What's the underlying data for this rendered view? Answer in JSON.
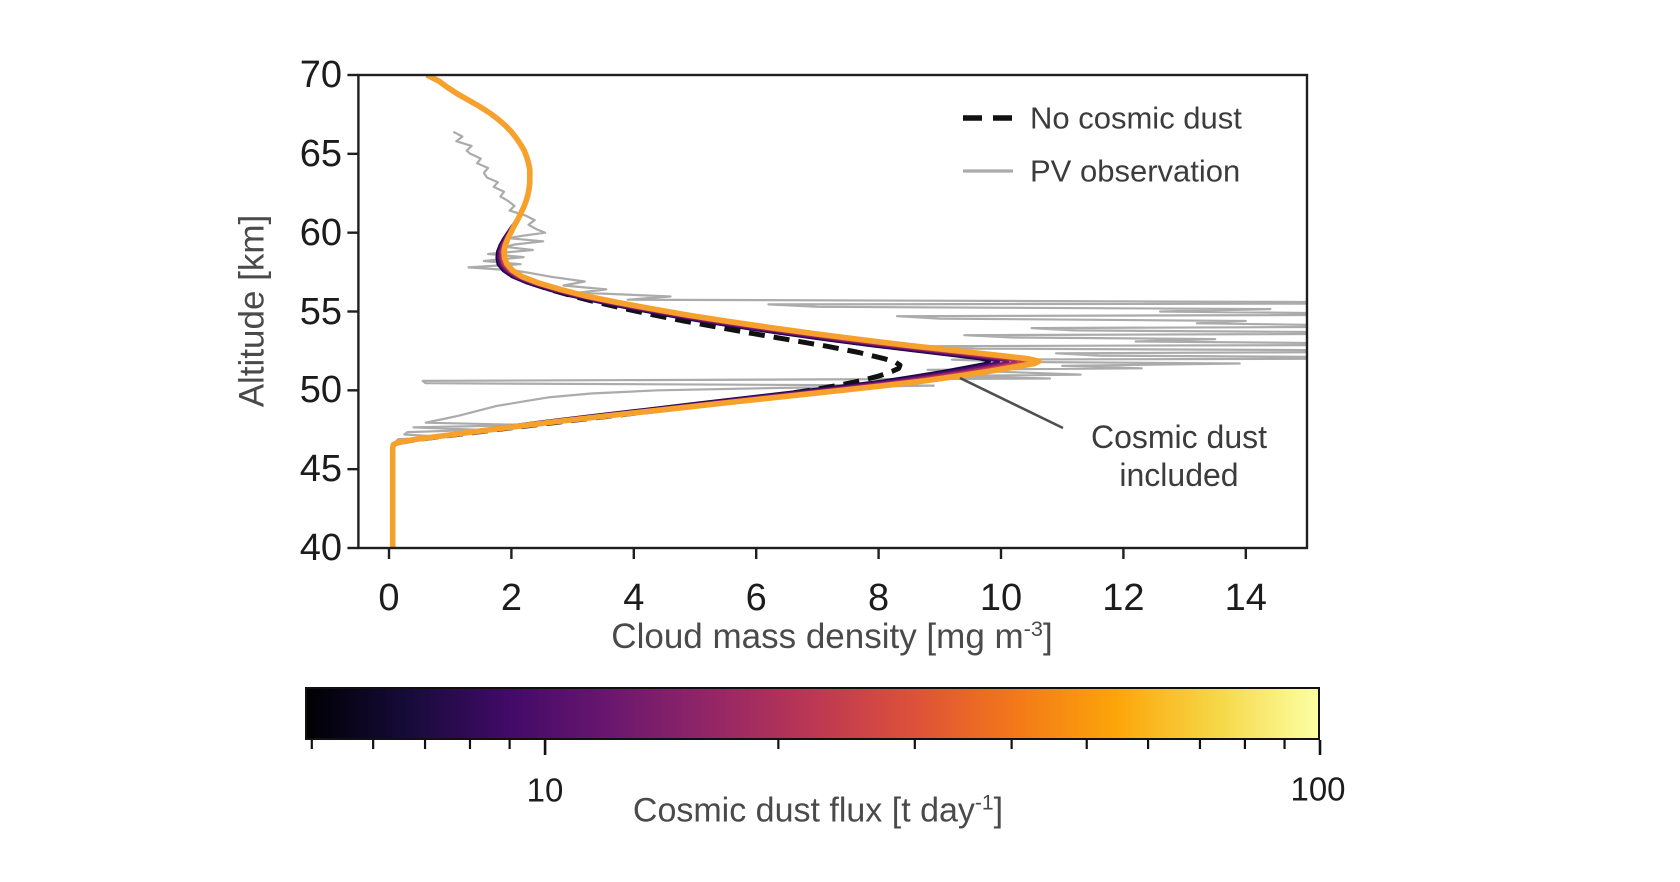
{
  "colors": {
    "background": "#ffffff",
    "spine": "#1f1f1f",
    "tick_text": "#1c1c1c",
    "label_text": "#4a4a4a",
    "legend_text": "#3c3c3c",
    "no_cosmic_dust_line": "#111111",
    "pv_observation_line": "#ababab",
    "leader_line": "#4f4f4f",
    "inferno_stops": [
      "#000004",
      "#160B39",
      "#420A68",
      "#6A176E",
      "#932667",
      "#BC3754",
      "#DD513A",
      "#F37819",
      "#FCA50A",
      "#F6D746",
      "#FCFFA4"
    ]
  },
  "axes": {
    "ylabel": "Altitude [km]",
    "xlabel_main": "Cloud mass density [mg m",
    "xlabel_sup": "-3",
    "xlabel_end": "]",
    "yticks": [
      70,
      65,
      60,
      55,
      50,
      45,
      40
    ],
    "xticks": [
      0,
      2,
      4,
      6,
      8,
      10,
      12,
      14
    ],
    "xlim": [
      -0.5,
      15
    ],
    "ylim": [
      40,
      70
    ]
  },
  "legend": {
    "items": [
      {
        "label": "No cosmic dust",
        "style": "dashed-black"
      },
      {
        "label": "PV observation",
        "style": "solid-gray"
      }
    ]
  },
  "annotation": {
    "line1": "Cosmic dust",
    "line2": "included"
  },
  "colorbar": {
    "label_main": "Cosmic dust flux [t day",
    "label_sup": "-1",
    "label_end": "]",
    "scale": "log",
    "range_min": 4.9,
    "range_max": 100,
    "ticks_major": [
      10,
      100
    ],
    "tick_labels": [
      "10",
      "100"
    ],
    "ticks_minor": [
      5,
      6,
      7,
      8,
      9,
      20,
      30,
      40,
      50,
      60,
      70,
      80,
      90
    ],
    "colormap": "inferno"
  },
  "chart_data": {
    "type": "line",
    "title": "",
    "xlabel": "Cloud mass density [mg m^-3]",
    "ylabel": "Altitude [km]",
    "xlim": [
      -0.5,
      15
    ],
    "ylim": [
      40,
      70
    ],
    "grid": false,
    "legend_position": "upper right inside",
    "series": [
      {
        "name": "PV observation",
        "style": "solid",
        "width": 2.2,
        "points": [
          [
            1.05,
            66.4
          ],
          [
            1.2,
            66.1
          ],
          [
            1.1,
            65.8
          ],
          [
            1.35,
            65.5
          ],
          [
            1.27,
            65.2
          ],
          [
            1.33,
            65.0
          ],
          [
            1.5,
            64.7
          ],
          [
            1.44,
            64.4
          ],
          [
            1.62,
            64.1
          ],
          [
            1.55,
            63.8
          ],
          [
            1.6,
            63.5
          ],
          [
            1.78,
            63.2
          ],
          [
            1.71,
            62.9
          ],
          [
            1.88,
            62.6
          ],
          [
            1.82,
            62.3
          ],
          [
            1.95,
            62.0
          ],
          [
            2.05,
            61.7
          ],
          [
            1.97,
            61.4
          ],
          [
            2.22,
            61.1
          ],
          [
            2.38,
            60.8
          ],
          [
            2.28,
            60.5
          ],
          [
            2.42,
            60.2
          ],
          [
            2.55,
            60.0
          ],
          [
            2.18,
            59.8
          ],
          [
            1.95,
            59.65
          ],
          [
            2.52,
            59.45
          ],
          [
            2.05,
            59.25
          ],
          [
            1.9,
            59.1
          ],
          [
            2.35,
            58.9
          ],
          [
            1.62,
            58.65
          ],
          [
            2.2,
            58.45
          ],
          [
            1.55,
            58.2
          ],
          [
            2.15,
            58.0
          ],
          [
            1.3,
            57.8
          ],
          [
            2.05,
            57.6
          ],
          [
            2.3,
            57.45
          ],
          [
            2.65,
            57.2
          ],
          [
            3.2,
            56.9
          ],
          [
            2.85,
            56.65
          ],
          [
            3.55,
            56.4
          ],
          [
            3.1,
            56.2
          ],
          [
            4.6,
            55.95
          ],
          [
            3.9,
            55.75
          ],
          [
            15.1,
            55.6
          ],
          [
            15.1,
            55.5
          ],
          [
            6.2,
            55.45
          ],
          [
            7.0,
            55.3
          ],
          [
            14.4,
            55.15
          ],
          [
            12.6,
            55.0
          ],
          [
            15.1,
            54.9
          ],
          [
            15.1,
            54.78
          ],
          [
            8.3,
            54.7
          ],
          [
            9.0,
            54.55
          ],
          [
            14.0,
            54.4
          ],
          [
            13.2,
            54.25
          ],
          [
            15.1,
            54.15
          ],
          [
            15.1,
            54.02
          ],
          [
            10.5,
            53.95
          ],
          [
            11.2,
            53.8
          ],
          [
            15.1,
            53.7
          ],
          [
            15.1,
            53.57
          ],
          [
            9.4,
            53.5
          ],
          [
            10.2,
            53.35
          ],
          [
            13.5,
            53.25
          ],
          [
            12.2,
            53.1
          ],
          [
            15.1,
            53.0
          ],
          [
            15.1,
            52.87
          ],
          [
            8.8,
            52.8
          ],
          [
            9.6,
            52.65
          ],
          [
            15.1,
            52.55
          ],
          [
            15.1,
            52.42
          ],
          [
            10.9,
            52.35
          ],
          [
            11.6,
            52.2
          ],
          [
            15.1,
            52.12
          ],
          [
            15.1,
            52.0
          ],
          [
            9.2,
            51.95
          ],
          [
            10.4,
            51.8
          ],
          [
            13.9,
            51.7
          ],
          [
            11.0,
            51.55
          ],
          [
            12.3,
            51.4
          ],
          [
            8.8,
            51.3
          ],
          [
            10.2,
            51.15
          ],
          [
            11.3,
            51.0
          ],
          [
            9.0,
            50.9
          ],
          [
            10.8,
            50.75
          ],
          [
            0.55,
            50.6
          ],
          [
            0.6,
            50.45
          ],
          [
            8.9,
            50.3
          ],
          [
            6.3,
            50.15
          ],
          [
            4.4,
            50.0
          ],
          [
            3.3,
            49.8
          ],
          [
            2.6,
            49.55
          ],
          [
            2.2,
            49.3
          ],
          [
            1.75,
            49.0
          ],
          [
            1.45,
            48.7
          ],
          [
            1.15,
            48.4
          ],
          [
            0.85,
            48.15
          ],
          [
            0.6,
            47.95
          ],
          [
            2.3,
            47.8
          ],
          [
            0.4,
            47.65
          ],
          [
            1.5,
            47.5
          ],
          [
            0.3,
            47.35
          ],
          [
            0.25,
            47.2
          ],
          [
            0.9,
            47.05
          ],
          [
            0.15,
            46.9
          ],
          [
            0.1,
            46.7
          ],
          [
            0.08,
            46.55
          ]
        ]
      },
      {
        "name": "No cosmic dust",
        "style": "dashed",
        "width": 5,
        "dash": [
          16,
          9
        ],
        "points": [
          [
            0.62,
            70
          ],
          [
            0.82,
            69.6
          ],
          [
            0.96,
            69.2
          ],
          [
            1.12,
            68.8
          ],
          [
            1.3,
            68.4
          ],
          [
            1.48,
            68.0
          ],
          [
            1.64,
            67.6
          ],
          [
            1.78,
            67.2
          ],
          [
            1.9,
            66.8
          ],
          [
            2.0,
            66.4
          ],
          [
            2.08,
            66.0
          ],
          [
            2.15,
            65.6
          ],
          [
            2.21,
            65.2
          ],
          [
            2.25,
            64.8
          ],
          [
            2.28,
            64.4
          ],
          [
            2.3,
            64.0
          ],
          [
            2.3,
            63.6
          ],
          [
            2.3,
            63.2
          ],
          [
            2.29,
            62.8
          ],
          [
            2.27,
            62.4
          ],
          [
            2.24,
            62.0
          ],
          [
            2.2,
            61.6
          ],
          [
            2.15,
            61.2
          ],
          [
            2.1,
            60.8
          ],
          [
            2.04,
            60.4
          ],
          [
            1.99,
            60.0
          ],
          [
            1.94,
            59.6
          ],
          [
            1.9,
            59.2
          ],
          [
            1.88,
            58.8
          ],
          [
            1.89,
            58.4
          ],
          [
            1.93,
            58.0
          ],
          [
            2.02,
            57.6
          ],
          [
            2.12,
            57.2
          ],
          [
            2.32,
            56.8
          ],
          [
            2.62,
            56.4
          ],
          [
            2.98,
            56.0
          ],
          [
            3.38,
            55.6
          ],
          [
            3.82,
            55.2
          ],
          [
            4.3,
            54.8
          ],
          [
            4.82,
            54.4
          ],
          [
            5.38,
            54.0
          ],
          [
            5.95,
            53.6
          ],
          [
            6.55,
            53.2
          ],
          [
            7.15,
            52.8
          ],
          [
            7.68,
            52.4
          ],
          [
            8.1,
            52.0
          ],
          [
            8.27,
            51.8
          ],
          [
            8.35,
            51.6
          ],
          [
            8.33,
            51.4
          ],
          [
            8.22,
            51.2
          ],
          [
            8.0,
            50.9
          ],
          [
            7.7,
            50.6
          ],
          [
            7.32,
            50.3
          ],
          [
            6.88,
            50.0
          ],
          [
            6.18,
            49.6
          ],
          [
            5.4,
            49.2
          ],
          [
            4.55,
            48.8
          ],
          [
            3.68,
            48.4
          ],
          [
            2.8,
            48.0
          ],
          [
            1.95,
            47.6
          ],
          [
            1.12,
            47.2
          ],
          [
            0.5,
            46.9
          ],
          [
            0.17,
            46.7
          ],
          [
            0.07,
            46.55
          ],
          [
            0.06,
            46.3
          ],
          [
            0.06,
            40
          ]
        ]
      },
      {
        "name": "Cosmic dust included",
        "style": "family-solid",
        "note": "Family of model profiles colored by cosmic dust flux (inferno colormap, low flux = dark inner curve, high flux = bright outer curve)",
        "base_points": [
          [
            0.62,
            70
          ],
          [
            0.82,
            69.6
          ],
          [
            0.96,
            69.2
          ],
          [
            1.12,
            68.8
          ],
          [
            1.3,
            68.4
          ],
          [
            1.48,
            68.0
          ],
          [
            1.64,
            67.6
          ],
          [
            1.78,
            67.2
          ],
          [
            1.9,
            66.8
          ],
          [
            2.0,
            66.4
          ],
          [
            2.08,
            66.0
          ],
          [
            2.15,
            65.6
          ],
          [
            2.21,
            65.2
          ],
          [
            2.25,
            64.8
          ],
          [
            2.28,
            64.4
          ],
          [
            2.3,
            64.0
          ],
          [
            2.3,
            63.6
          ],
          [
            2.3,
            63.2
          ],
          [
            2.29,
            62.8
          ],
          [
            2.27,
            62.4
          ],
          [
            2.24,
            62.0
          ],
          [
            2.2,
            61.6
          ],
          [
            2.15,
            61.2
          ],
          [
            2.1,
            60.8
          ],
          [
            2.04,
            60.4
          ],
          [
            1.99,
            60.0
          ],
          [
            1.94,
            59.6
          ],
          [
            1.9,
            59.2
          ],
          [
            1.88,
            58.8
          ],
          [
            1.89,
            58.4
          ],
          [
            1.93,
            58.0
          ],
          [
            2.02,
            57.6
          ],
          [
            2.18,
            57.2
          ],
          [
            2.45,
            56.8
          ],
          [
            2.8,
            56.4
          ],
          [
            3.2,
            56.0
          ],
          [
            3.7,
            55.6
          ],
          [
            4.25,
            55.2
          ],
          [
            4.85,
            54.8
          ],
          [
            5.5,
            54.4
          ],
          [
            6.2,
            54.0
          ],
          [
            6.95,
            53.6
          ],
          [
            7.75,
            53.2
          ],
          [
            8.6,
            52.8
          ],
          [
            9.3,
            52.5
          ],
          [
            10.0,
            52.2
          ],
          [
            10.45,
            52.0
          ],
          [
            10.62,
            51.85
          ],
          [
            10.55,
            51.7
          ],
          [
            10.25,
            51.5
          ],
          [
            9.8,
            51.2
          ],
          [
            9.3,
            50.9
          ],
          [
            8.75,
            50.6
          ],
          [
            8.1,
            50.3
          ],
          [
            7.4,
            50.0
          ],
          [
            6.45,
            49.6
          ],
          [
            5.5,
            49.2
          ],
          [
            4.55,
            48.8
          ],
          [
            3.6,
            48.4
          ],
          [
            2.7,
            48.0
          ],
          [
            1.85,
            47.6
          ],
          [
            1.05,
            47.2
          ],
          [
            0.45,
            46.9
          ],
          [
            0.15,
            46.7
          ],
          [
            0.07,
            46.55
          ],
          [
            0.06,
            46.3
          ],
          [
            0.06,
            40
          ]
        ],
        "members": [
          {
            "color": "#150A3E",
            "scale": 0.924,
            "width": 3.2
          },
          {
            "color": "#45096D",
            "scale": 0.938,
            "width": 3.2
          },
          {
            "color": "#75176C",
            "scale": 0.952,
            "width": 3.2
          },
          {
            "color": "#A32A63",
            "scale": 0.965,
            "width": 3.2
          },
          {
            "color": "#C73E4F",
            "scale": 0.976,
            "width": 3.2
          },
          {
            "color": "#E4695F",
            "scale": 0.987,
            "width": 3.4
          },
          {
            "color": "#F6A12B",
            "scale": 1.0,
            "width": 5.6
          }
        ]
      }
    ]
  }
}
